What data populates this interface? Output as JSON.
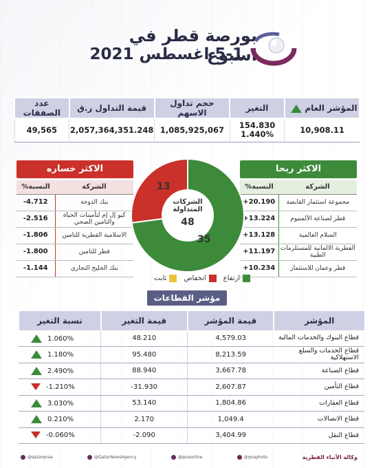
{
  "header": {
    "title": "بورصة قطر في اسبوع",
    "subtitle": "5-1 اغسطس 2021"
  },
  "index_table": {
    "headers": {
      "index": "المؤشر العام",
      "change": "التغير",
      "volume": "حجم تداول الاسهم",
      "value": "قيمة التداول ر.ق",
      "deals": "عدد الصفقات"
    },
    "values": {
      "index": "10,908.11",
      "change": "154.830",
      "change_pct": "1.440%",
      "volume": "1,085,925,067",
      "value": "2,057,364,351.248",
      "deals": "49,565"
    }
  },
  "gainers": {
    "title": "الاكثر ربحا",
    "col_company": "الشركة",
    "col_pct": "النسبة%",
    "rows": [
      {
        "company": "مجموعة استثمار القابضة",
        "pct": "+20.190"
      },
      {
        "company": "قطر لصناعة الألمنيوم",
        "pct": "+13.224"
      },
      {
        "company": "السلام العالمية",
        "pct": "+13.128"
      },
      {
        "company": "القطرية الالمانية للمستلزمات الطبية",
        "pct": "+11.197"
      },
      {
        "company": "قطر وعمان للاستثمار",
        "pct": "+10.234"
      }
    ]
  },
  "losers": {
    "title": "الاكثر خساره",
    "col_company": "الشركة",
    "col_pct": "النسبة%",
    "rows": [
      {
        "company": "بنك الدوحة",
        "pct": "-4.712"
      },
      {
        "company": "كيو إل إم لتأمينات الحياة والتامين الصحي",
        "pct": "-2.516"
      },
      {
        "company": "الاسلامية القطرية للتامين",
        "pct": "-1.806"
      },
      {
        "company": "قطر للتامين",
        "pct": "-1.800"
      },
      {
        "company": "بنك الخليج التجاري",
        "pct": "-1.144"
      }
    ]
  },
  "donut": {
    "label": "الشركات المتداولة",
    "total": "48",
    "up": "35",
    "down": "13",
    "colors": {
      "up": "#3d8a3a",
      "down": "#c9312a",
      "flat": "#e8c53a"
    }
  },
  "legend": {
    "up": "ارتفاع",
    "down": "انخفاض",
    "flat": "ثابت"
  },
  "sectors": {
    "title": "مؤشر القطاعات",
    "headers": {
      "name": "المؤشر",
      "value": "قيمة المؤشر",
      "change": "قيمة التغير",
      "pct": "نسبة التغير"
    },
    "rows": [
      {
        "name": "قطاع البنوك والخدمات المالية",
        "value": "4,579.03",
        "change": "48.210",
        "pct": "1.060%",
        "dir": "up"
      },
      {
        "name": "قطاع الخدمات والسلع الاستهلاكية",
        "value": "8,213.59",
        "change": "95.480",
        "pct": "1.180%",
        "dir": "up"
      },
      {
        "name": "قطاع الصناعة",
        "value": "3,667.78",
        "change": "88.940",
        "pct": "2.490%",
        "dir": "up"
      },
      {
        "name": "قطاع التأمين",
        "value": "2,607.87",
        "change": "-31.930",
        "pct": "-1.210%",
        "dir": "down"
      },
      {
        "name": "قطاع العقارات",
        "value": "1,804.86",
        "change": "53.140",
        "pct": "3.030%",
        "dir": "up"
      },
      {
        "name": "قطاع الاتصالات",
        "value": "1,049.4",
        "change": "2.170",
        "pct": "0.210%",
        "dir": "up"
      },
      {
        "name": "قطاع النقل",
        "value": "3,404.99",
        "change": "-2.090",
        "pct": "-0.060%",
        "dir": "down"
      }
    ]
  },
  "footer": {
    "items": [
      "@qatarqnaa",
      "@QatarNewsAgency",
      "@qnaonline",
      "@qnaphoto"
    ],
    "brand": "وكالة الأنباء القطرية"
  }
}
